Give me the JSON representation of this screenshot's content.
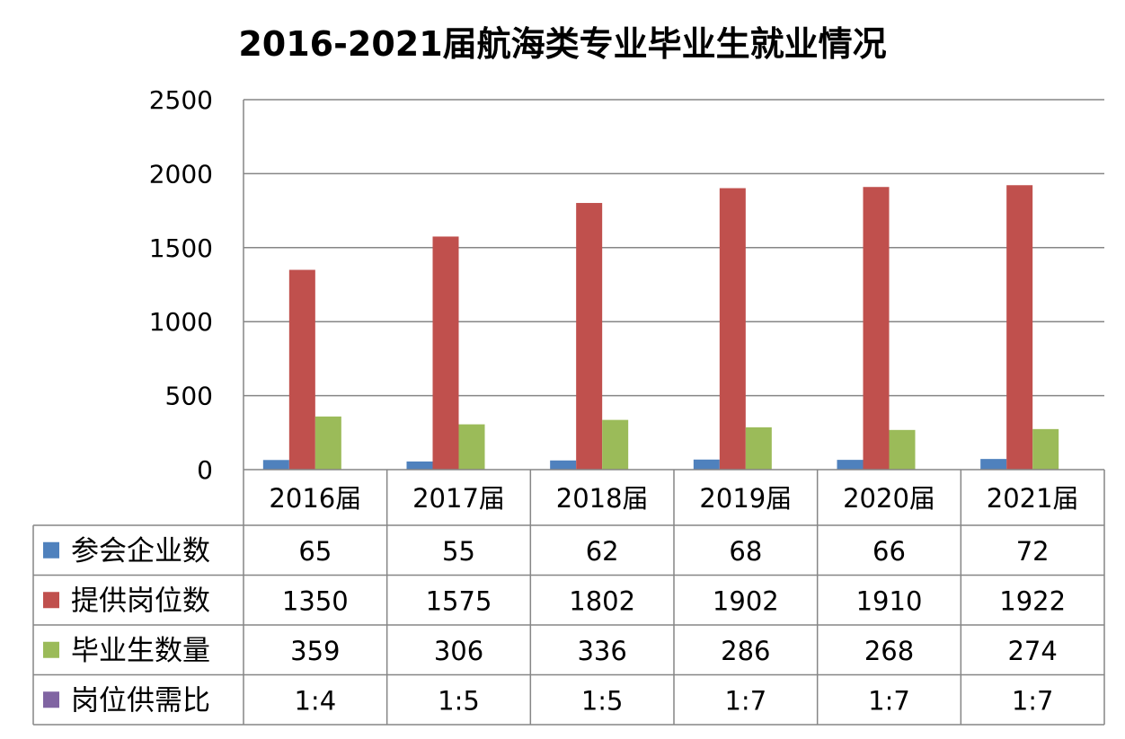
{
  "chart_data": {
    "type": "bar",
    "title": "2016-2021届航海类专业毕业生就业情况",
    "categories": [
      "2016届",
      "2017届",
      "2018届",
      "2019届",
      "2020届",
      "2021届"
    ],
    "ylim": [
      0,
      2500
    ],
    "yticks": [
      0,
      500,
      1000,
      1500,
      2000,
      2500
    ],
    "grid": true,
    "legend": "data-table",
    "series": [
      {
        "name": "参会企业数",
        "color": "#4F81BD",
        "values": [
          65,
          55,
          62,
          68,
          66,
          72
        ],
        "labels": [
          "65",
          "55",
          "62",
          "68",
          "66",
          "72"
        ]
      },
      {
        "name": "提供岗位数",
        "color": "#C0504D",
        "values": [
          1350,
          1575,
          1802,
          1902,
          1910,
          1922
        ],
        "labels": [
          "1350",
          "1575",
          "1802",
          "1902",
          "1910",
          "1922"
        ]
      },
      {
        "name": "毕业生数量",
        "color": "#9BBB59",
        "values": [
          359,
          306,
          336,
          286,
          268,
          274
        ],
        "labels": [
          "359",
          "306",
          "336",
          "286",
          "268",
          "274"
        ]
      },
      {
        "name": "岗位供需比",
        "color": "#8064A2",
        "values": [
          null,
          null,
          null,
          null,
          null,
          null
        ],
        "labels": [
          "1:4",
          "1:5",
          "1:5",
          "1:7",
          "1:7",
          "1:7"
        ]
      }
    ]
  }
}
